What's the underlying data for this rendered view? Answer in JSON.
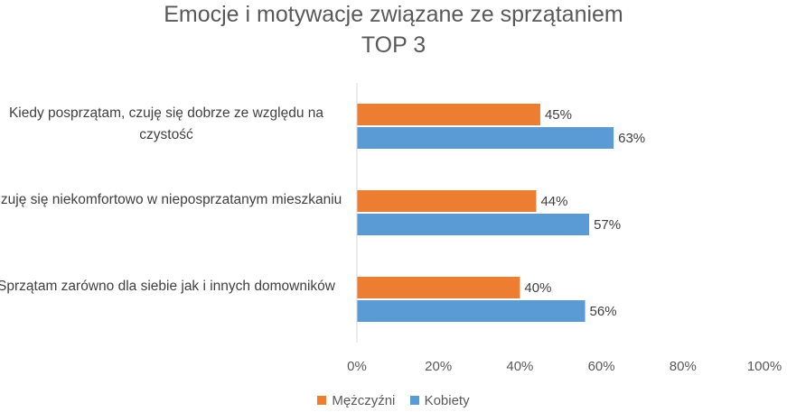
{
  "chart_data": {
    "type": "bar",
    "orientation": "horizontal",
    "title": "Emocje i motywacje związane ze sprzątaniem",
    "subtitle": "TOP 3",
    "categories": [
      "Kiedy posprzątam, czuję się dobrze ze względu na czystość",
      "Czuję się niekomfortowo w nieposprzatanym mieszkaniu",
      "Sprzątam zarówno dla siebie jak i innych domowników"
    ],
    "series": [
      {
        "name": "Mężczyźni",
        "color": "#ED7D31",
        "values": [
          45,
          44,
          40
        ],
        "labels": [
          "45%",
          "44%",
          "40%"
        ]
      },
      {
        "name": "Kobiety",
        "color": "#5B9BD5",
        "values": [
          63,
          57,
          56
        ],
        "labels": [
          "63%",
          "57%",
          "56%"
        ]
      }
    ],
    "xlim": [
      0,
      100
    ],
    "x_ticks": [
      "0%",
      "20%",
      "40%",
      "60%",
      "80%",
      "100%"
    ],
    "legend_position": "bottom",
    "grid": false
  }
}
